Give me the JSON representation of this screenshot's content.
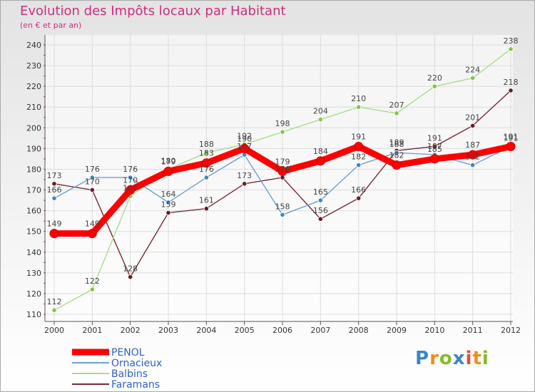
{
  "header": {
    "title": "Evolution des Impôts locaux par Habitant",
    "subtitle": "(en € et par an)"
  },
  "logo": {
    "text": "Proxiti",
    "letters": [
      "P",
      "r",
      "o",
      "x",
      "i",
      "t",
      "i"
    ]
  },
  "chart_data": {
    "type": "line",
    "title": "Evolution des Impôts locaux par Habitant",
    "subtitle": "(en € et par an)",
    "xlabel": "",
    "ylabel": "",
    "x": [
      "2000",
      "2001",
      "2002",
      "2003",
      "2004",
      "2005",
      "2006",
      "2007",
      "2008",
      "2009",
      "2010",
      "2011",
      "2012"
    ],
    "ylim": [
      110,
      240
    ],
    "yticks": [
      110,
      120,
      130,
      140,
      150,
      160,
      170,
      180,
      190,
      200,
      210,
      220,
      230,
      240
    ],
    "grid": true,
    "legend_position": "bottom-left",
    "series": [
      {
        "name": "PENOL",
        "color": "#ff0000",
        "marker_color": "#ff0000",
        "emphasis": true,
        "values": [
          149,
          149,
          170,
          179,
          183,
          190,
          179,
          184,
          191,
          182,
          185,
          187,
          191
        ]
      },
      {
        "name": "Ornacieux",
        "color": "#6fa0cf",
        "marker_color": "#3d86c6",
        "emphasis": false,
        "values": [
          166,
          176,
          176,
          164,
          176,
          187,
          158,
          165,
          182,
          188,
          187,
          182,
          191
        ]
      },
      {
        "name": "Balbins",
        "color": "#a8dd8c",
        "marker_color": "#87c441",
        "emphasis": false,
        "values": [
          112,
          122,
          167,
          180,
          188,
          192,
          198,
          204,
          210,
          207,
          220,
          224,
          238
        ]
      },
      {
        "name": "Faramans",
        "color": "#7a2a36",
        "marker_color": "#6b1a25",
        "emphasis": false,
        "values": [
          173,
          170,
          128,
          159,
          161,
          173,
          176,
          156,
          166,
          189,
          191,
          201,
          218
        ]
      }
    ]
  }
}
